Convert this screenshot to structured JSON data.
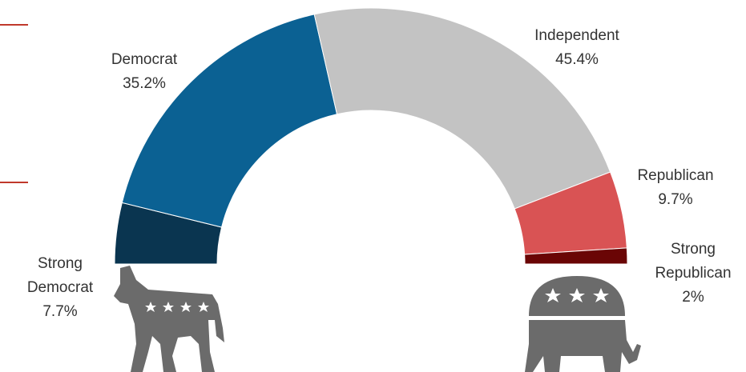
{
  "chart_data": {
    "type": "half-donut",
    "categories": [
      "Strong Democrat",
      "Democrat",
      "Independent",
      "Republican",
      "Strong Republican"
    ],
    "values": [
      7.7,
      35.2,
      45.4,
      9.7,
      2
    ],
    "value_labels": [
      "7.7%",
      "35.2%",
      "45.4%",
      "9.7%",
      "2%"
    ],
    "colors": [
      "#0a3550",
      "#0b6193",
      "#c3c3c3",
      "#d95354",
      "#6a0505"
    ]
  }
}
